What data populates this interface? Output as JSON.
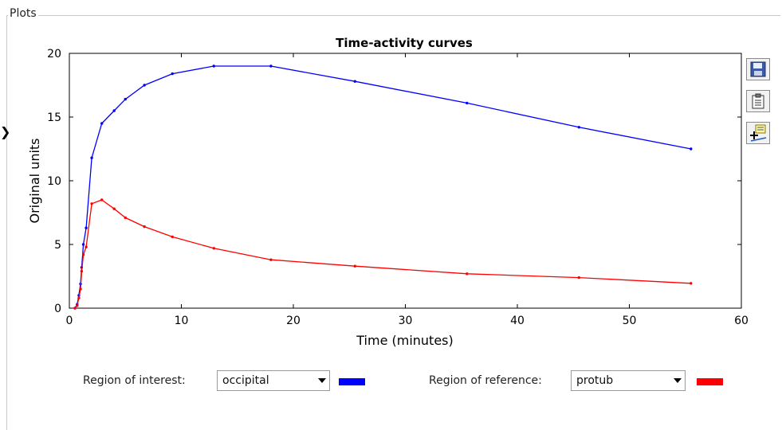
{
  "panel": {
    "title": "Plots"
  },
  "left_glyph": "❯",
  "chart_data": {
    "type": "line",
    "title": "Time-activity curves",
    "xlabel": "Time (minutes)",
    "ylabel": "Original units",
    "xlim": [
      0,
      60
    ],
    "ylim": [
      0,
      20
    ],
    "xticks": [
      0,
      10,
      20,
      30,
      40,
      50,
      60
    ],
    "yticks": [
      0,
      5,
      10,
      15,
      20
    ],
    "grid": false,
    "series": [
      {
        "color": "#0000ff",
        "x": [
          0.5,
          0.7,
          0.85,
          1.0,
          1.1,
          1.25,
          1.5,
          2.0,
          2.9,
          4.0,
          5.0,
          6.7,
          9.2,
          12.9,
          18.0,
          25.5,
          35.5,
          45.5,
          55.5
        ],
        "y": [
          0.0,
          0.3,
          1.0,
          1.9,
          3.2,
          5.0,
          6.3,
          11.8,
          14.5,
          15.5,
          16.4,
          17.5,
          18.4,
          19.0,
          19.0,
          17.8,
          16.1,
          14.2,
          12.5
        ]
      },
      {
        "color": "#ff0000",
        "x": [
          0.5,
          0.7,
          0.85,
          1.0,
          1.1,
          1.25,
          1.5,
          2.0,
          2.9,
          4.0,
          5.0,
          6.7,
          9.2,
          12.9,
          18.0,
          25.5,
          35.5,
          45.5,
          55.5
        ],
        "y": [
          0.0,
          0.2,
          0.8,
          1.5,
          2.9,
          4.2,
          4.8,
          8.2,
          8.5,
          7.8,
          7.1,
          6.4,
          5.6,
          4.7,
          3.8,
          3.3,
          2.7,
          2.4,
          1.95
        ]
      }
    ]
  },
  "toolbar": {
    "save_icon": "floppy-save-icon",
    "clipboard_icon": "clipboard-icon",
    "data_cursor_icon": "data-cursor-icon"
  },
  "controls": {
    "roi": {
      "label": "Region of interest:",
      "value": "occipital",
      "color": "#0000ff"
    },
    "reference": {
      "label": "Region of reference:",
      "value": "protub",
      "color": "#ff0000"
    }
  }
}
